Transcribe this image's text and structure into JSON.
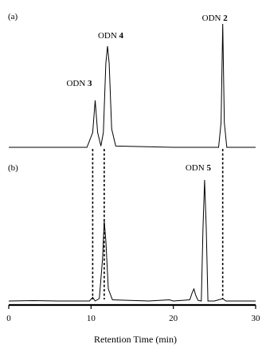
{
  "chart_data": [
    {
      "type": "line",
      "panel_label": "(a)",
      "xlim": [
        0,
        30
      ],
      "ylim": [
        0,
        1
      ],
      "y_axis": false,
      "grid": false,
      "legend": "none",
      "color": "#000000",
      "series": [
        {
          "values": [
            {
              "x": 0,
              "y": 0.0
            },
            {
              "x": 5,
              "y": 0.0
            },
            {
              "x": 9.5,
              "y": 0.0
            },
            {
              "x": 10.2,
              "y": 0.12
            },
            {
              "x": 10.5,
              "y": 0.38
            },
            {
              "x": 10.8,
              "y": 0.12
            },
            {
              "x": 11.2,
              "y": 0.01
            },
            {
              "x": 11.5,
              "y": 0.12
            },
            {
              "x": 11.8,
              "y": 0.68
            },
            {
              "x": 12.0,
              "y": 0.82
            },
            {
              "x": 12.2,
              "y": 0.68
            },
            {
              "x": 12.5,
              "y": 0.15
            },
            {
              "x": 13.0,
              "y": 0.01
            },
            {
              "x": 20,
              "y": 0.0
            },
            {
              "x": 25.5,
              "y": 0.0
            },
            {
              "x": 25.8,
              "y": 0.2
            },
            {
              "x": 26.0,
              "y": 1.0
            },
            {
              "x": 26.2,
              "y": 0.2
            },
            {
              "x": 26.5,
              "y": 0.0
            },
            {
              "x": 30,
              "y": 0.0
            }
          ]
        }
      ],
      "annotations": [
        {
          "text": "ODN ",
          "bold": "3",
          "x": 10.5
        },
        {
          "text": "ODN ",
          "bold": "4",
          "x": 12.0
        },
        {
          "text": "ODN ",
          "bold": "2",
          "x": 26.0
        }
      ]
    },
    {
      "type": "line",
      "panel_label": "(b)",
      "xlim": [
        0,
        30
      ],
      "ylim": [
        0,
        1
      ],
      "y_axis": false,
      "grid": false,
      "legend": "none",
      "color": "#000000",
      "xlabel": "Retention Time (min)",
      "xticks": [
        0,
        10,
        20,
        30
      ],
      "series": [
        {
          "values": [
            {
              "x": 0,
              "y": 0.0
            },
            {
              "x": 3,
              "y": 0.003
            },
            {
              "x": 6,
              "y": 0.0
            },
            {
              "x": 9.8,
              "y": 0.0
            },
            {
              "x": 10.2,
              "y": 0.03
            },
            {
              "x": 10.5,
              "y": 0.0
            },
            {
              "x": 11.0,
              "y": 0.02
            },
            {
              "x": 11.4,
              "y": 0.35
            },
            {
              "x": 11.6,
              "y": 0.66
            },
            {
              "x": 11.8,
              "y": 0.5
            },
            {
              "x": 12.1,
              "y": 0.1
            },
            {
              "x": 12.6,
              "y": 0.01
            },
            {
              "x": 17,
              "y": 0.0
            },
            {
              "x": 19.5,
              "y": 0.01
            },
            {
              "x": 20,
              "y": 0.0
            },
            {
              "x": 22.0,
              "y": 0.01
            },
            {
              "x": 22.3,
              "y": 0.07
            },
            {
              "x": 22.5,
              "y": 0.1
            },
            {
              "x": 22.7,
              "y": 0.05
            },
            {
              "x": 23.0,
              "y": 0.005
            },
            {
              "x": 23.4,
              "y": 0.0
            },
            {
              "x": 23.6,
              "y": 0.6
            },
            {
              "x": 23.8,
              "y": 1.0
            },
            {
              "x": 24.0,
              "y": 0.6
            },
            {
              "x": 24.2,
              "y": 0.0
            },
            {
              "x": 25.0,
              "y": 0.0
            },
            {
              "x": 26.0,
              "y": 0.02
            },
            {
              "x": 26.4,
              "y": 0.0
            },
            {
              "x": 30,
              "y": 0.0
            }
          ]
        }
      ],
      "annotations": [
        {
          "text": "ODN ",
          "bold": "5",
          "x": 23.8
        }
      ]
    }
  ],
  "guides": [
    {
      "x": 10.2,
      "from_panel": 0,
      "to_panel": 1
    },
    {
      "x": 11.6,
      "from_panel": 0,
      "to_panel": 1
    },
    {
      "x": 26.0,
      "from_panel": 0,
      "to_panel": 1
    }
  ]
}
